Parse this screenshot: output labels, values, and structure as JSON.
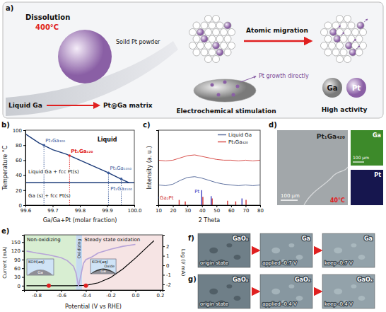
{
  "panel_a": {
    "letter": "a)",
    "dissolution": "Dissolution",
    "temperature": "400°C",
    "pt_powder": "Soild Pt powder",
    "liquid_ga": "Liquid Ga",
    "matrix": "Pt@Ga matrix",
    "migration": "Atomic migration",
    "growth": "Pt growth directly",
    "stimulation": "Electrochemical stimulation",
    "ga": "Ga",
    "pt": "Pt",
    "activity": "High activity"
  },
  "chart_data": [
    {
      "letter": "b)",
      "type": "line",
      "x_label": "Ga/Ga+Pt (molar fraction)",
      "y_label": "Temperature °C",
      "xlim": [
        99.6,
        100.0
      ],
      "xticks": [
        99.6,
        99.7,
        99.8,
        99.9,
        {
          "value": 100.0,
          "label": "100.0"
        }
      ],
      "ylim": [
        0,
        100
      ],
      "yticks": [
        0,
        20,
        40,
        60,
        80,
        100
      ],
      "series": [
        {
          "color": "#1b3a78",
          "x": [
            99.6,
            99.65,
            99.7,
            99.75,
            99.8,
            99.85,
            99.9,
            99.95,
            99.98
          ],
          "values": [
            95,
            83,
            74,
            68,
            60,
            52,
            44,
            35,
            30
          ]
        },
        {
          "color": "#1b3a78",
          "x": [
            99.6,
            100.0
          ],
          "values": [
            30,
            30
          ]
        }
      ],
      "compositions": {
        "labels": [
          "Pt₁Ga₃₀₀",
          "Pt₁Ga₄₂₀",
          "Pt₁Ga₁₀₅₀",
          "Pt₁Ga₂₁₀₀"
        ],
        "x": [
          99.668,
          99.762,
          99.905,
          99.952
        ],
        "values": [
          80,
          66,
          43,
          35
        ],
        "colors": [
          "#3a5a9a",
          "#e02020",
          "#3a5a9a",
          "#3a5a9a"
        ],
        "line_style": "dotted"
      },
      "annotations": [
        "Liquid",
        "Liquid Ga + fcc Pt(s)",
        "Ga (s) + fcc Pt(s)"
      ]
    },
    {
      "letter": "c)",
      "type": "line",
      "x_label": "2 Theta",
      "y_label": "Intensity (a. u.)",
      "xlim": [
        10,
        80
      ],
      "xticks": [
        10,
        20,
        30,
        40,
        50,
        60,
        70,
        80
      ],
      "ylim": [
        0,
        100
      ],
      "tick_labels": "x",
      "legend": "upper right",
      "series": [
        {
          "name": "Liquid Ga",
          "color": "#5c6f9e",
          "x": [
            10,
            15,
            20,
            25,
            30,
            35,
            40,
            45,
            50,
            55,
            60,
            65,
            70,
            75,
            80
          ],
          "values": [
            27,
            26,
            28,
            33,
            37,
            38,
            36,
            33,
            30,
            28,
            27,
            26,
            27,
            26,
            27
          ]
        },
        {
          "name": "Pt₁Ga₄₂₀",
          "color": "#d9534f",
          "x": [
            10,
            15,
            20,
            25,
            30,
            35,
            40,
            45,
            50,
            55,
            60,
            65,
            70,
            75,
            80
          ],
          "values": [
            60,
            59,
            60,
            63,
            66,
            67,
            65,
            63,
            61,
            60,
            60,
            59,
            60,
            59,
            60
          ]
        }
      ],
      "references": [
        {
          "name": "Ga₂Pt",
          "color": "#d03030",
          "x": [
            24.3,
            28.5,
            40.6,
            47.0,
            57.6,
            63.2,
            70.3
          ],
          "values": [
            7,
            5,
            11,
            9,
            6,
            5,
            7
          ]
        },
        {
          "name": "Pt",
          "color": "#4040c0",
          "x": [
            39.8,
            46.3,
            67.5
          ],
          "values": [
            20,
            12,
            9
          ]
        }
      ]
    },
    {
      "letter": "e)",
      "type": "line",
      "x_label": "Potential (V vs RHE)",
      "y_label": "Current (mA)",
      "y2_label": "Log (I/ mA)",
      "xlim": [
        -0.9,
        0.22
      ],
      "xticks": [
        -0.8,
        -0.6,
        -0.4,
        -0.2,
        {
          "value": 0,
          "label": "0.0"
        },
        0.2
      ],
      "ylim": [
        -15,
        175
      ],
      "yticks": [
        0,
        30,
        60,
        90,
        120,
        150
      ],
      "y2lim": [
        -2.6,
        3.2
      ],
      "y2ticks": [
        -2,
        -1,
        0,
        1,
        2
      ],
      "series": [
        {
          "color": "#000000",
          "x": [
            -0.88,
            -0.8,
            -0.7,
            -0.6,
            -0.5,
            -0.45,
            -0.42,
            -0.38,
            -0.3,
            -0.2,
            -0.1,
            0,
            0.05,
            0.1,
            0.15
          ],
          "values": [
            0,
            0,
            0,
            0,
            0,
            0.5,
            1,
            3,
            10,
            28,
            58,
            95,
            115,
            135,
            155
          ]
        },
        {
          "color": "#b7a3d8",
          "axis": "y2",
          "x": [
            -0.88,
            -0.8,
            -0.7,
            -0.6,
            -0.55,
            -0.5,
            -0.48,
            -0.46,
            -0.45,
            -0.44,
            -0.42,
            -0.4,
            -0.35,
            -0.3,
            -0.2,
            -0.1,
            0
          ],
          "values": [
            1.5,
            1.3,
            1.1,
            0.8,
            0.5,
            -0.1,
            -0.8,
            -2.2,
            -1.6,
            -1.0,
            0.2,
            0.6,
            0.9,
            1.3,
            1.7,
            2.0,
            2.2
          ]
        }
      ],
      "points": {
        "color": "#e02020",
        "x": [
          -0.7,
          -0.4
        ],
        "values": [
          0,
          0
        ]
      },
      "regions": [
        {
          "label": "Non-oxidizing",
          "from": -0.9,
          "to": -0.48,
          "color": "#d8eed2"
        },
        {
          "label": "Oxidizing",
          "from": -0.48,
          "to": -0.43,
          "color": "#c6daf0"
        },
        {
          "label": "Steady state oxidation",
          "from": -0.43,
          "to": 0.22,
          "color": "#f6e4e4"
        }
      ],
      "insets": [
        {
          "labels": [
            "KOH(aq)",
            "Ga"
          ]
        },
        {
          "labels": [
            "KOH(aq)",
            "Oxide",
            "Ga"
          ]
        }
      ]
    }
  ],
  "panel_d": {
    "letter": "d)",
    "label": "Pt₁Ga₄₂₀",
    "temperature": "40°C",
    "scale_bar": "100 μm",
    "maps": [
      {
        "element": "Ga",
        "scale_bar": "100 μm"
      },
      {
        "element": "Pt"
      }
    ]
  },
  "panel_f": {
    "letter": "f)",
    "frames": [
      {
        "label": "GaOₓ",
        "caption": "origin state"
      },
      {
        "label": "Ga",
        "caption": "applied -0.7 V"
      },
      {
        "label": "Ga",
        "caption": "keep -0.7 V"
      }
    ]
  },
  "panel_g": {
    "letter": "g)",
    "frames": [
      {
        "label": "GaOₓ",
        "caption": "origin state"
      },
      {
        "label": "GaOₓ",
        "caption": "applied -0.4 V"
      },
      {
        "label": "GaOₓ",
        "caption": "keep -0.4 V"
      }
    ]
  }
}
